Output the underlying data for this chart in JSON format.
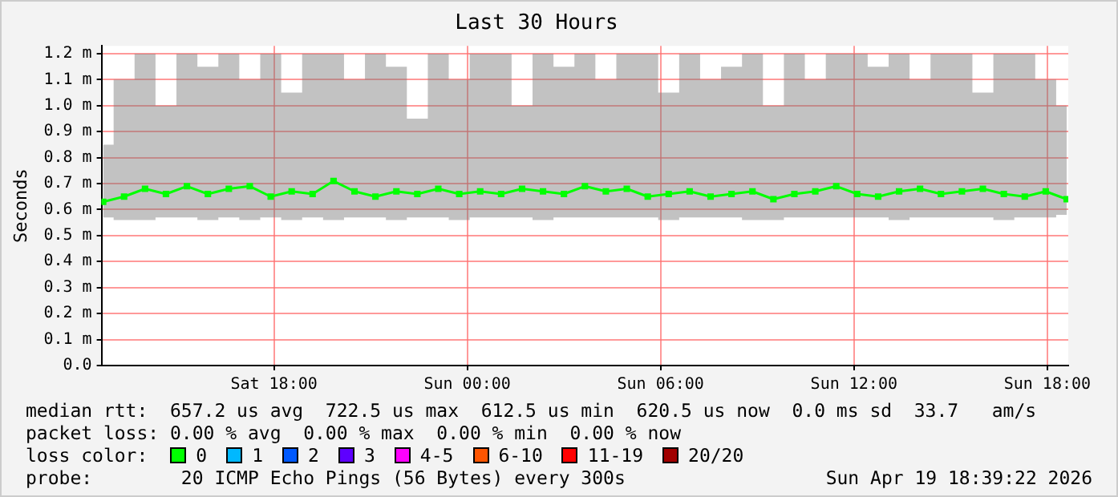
{
  "chart_data": {
    "type": "line",
    "title": "Last 30 Hours",
    "ylabel": "Seconds",
    "legend_title": "loss color:",
    "legend": "bottom",
    "grid": true,
    "marker": "square",
    "line_style": "solid",
    "x": [
      "2026-04-18T12:42",
      "2026-04-18T13:21",
      "2026-04-18T14:00",
      "2026-04-18T14:39",
      "2026-04-18T15:18",
      "2026-04-18T15:57",
      "2026-04-18T16:36",
      "2026-04-18T17:15",
      "2026-04-18T17:54",
      "2026-04-18T18:33",
      "2026-04-18T19:12",
      "2026-04-18T19:51",
      "2026-04-18T20:30",
      "2026-04-18T21:09",
      "2026-04-18T21:48",
      "2026-04-18T22:27",
      "2026-04-18T23:06",
      "2026-04-18T23:45",
      "2026-04-19T00:24",
      "2026-04-19T01:03",
      "2026-04-19T01:42",
      "2026-04-19T02:21",
      "2026-04-19T03:00",
      "2026-04-19T03:39",
      "2026-04-19T04:18",
      "2026-04-19T04:57",
      "2026-04-19T05:36",
      "2026-04-19T06:15",
      "2026-04-19T06:54",
      "2026-04-19T07:33",
      "2026-04-19T08:12",
      "2026-04-19T08:51",
      "2026-04-19T09:30",
      "2026-04-19T10:09",
      "2026-04-19T10:48",
      "2026-04-19T11:27",
      "2026-04-19T12:06",
      "2026-04-19T12:45",
      "2026-04-19T13:24",
      "2026-04-19T14:03",
      "2026-04-19T14:42",
      "2026-04-19T15:21",
      "2026-04-19T16:00",
      "2026-04-19T16:39",
      "2026-04-19T17:18",
      "2026-04-19T17:57",
      "2026-04-19T18:36"
    ],
    "xlim": [
      "2026-04-18T12:39",
      "2026-04-19T18:39"
    ],
    "xticks": [
      {
        "value": "2026-04-18T18:00",
        "label": "Sat 18:00"
      },
      {
        "value": "2026-04-19T00:00",
        "label": "Sun 00:00"
      },
      {
        "value": "2026-04-19T06:00",
        "label": "Sun 06:00"
      },
      {
        "value": "2026-04-19T12:00",
        "label": "Sun 12:00"
      },
      {
        "value": "2026-04-19T18:00",
        "label": "Sun 18:00"
      }
    ],
    "ylim": [
      0,
      1.23
    ],
    "yticks": [
      {
        "value": 0,
        "label": "0.0"
      },
      {
        "value": 0.1,
        "label": "0.1 m"
      },
      {
        "value": 0.2,
        "label": "0.2 m"
      },
      {
        "value": 0.3,
        "label": "0.3 m"
      },
      {
        "value": 0.4,
        "label": "0.4 m"
      },
      {
        "value": 0.5,
        "label": "0.5 m"
      },
      {
        "value": 0.6,
        "label": "0.6 m"
      },
      {
        "value": 0.7,
        "label": "0.7 m"
      },
      {
        "value": 0.8,
        "label": "0.8 m"
      },
      {
        "value": 0.9,
        "label": "0.9 m"
      },
      {
        "value": 1.0,
        "label": "1.0 m"
      },
      {
        "value": 1.1,
        "label": "1.1 m"
      },
      {
        "value": 1.2,
        "label": "1.2 m"
      }
    ],
    "series": [
      {
        "name": "0",
        "color": "#00ff00",
        "values": [
          0.63,
          0.65,
          0.68,
          0.66,
          0.69,
          0.66,
          0.68,
          0.69,
          0.65,
          0.67,
          0.66,
          0.71,
          0.67,
          0.65,
          0.67,
          0.66,
          0.68,
          0.66,
          0.67,
          0.66,
          0.68,
          0.67,
          0.66,
          0.69,
          0.67,
          0.68,
          0.65,
          0.66,
          0.67,
          0.65,
          0.66,
          0.67,
          0.64,
          0.66,
          0.67,
          0.69,
          0.66,
          0.65,
          0.67,
          0.68,
          0.66,
          0.67,
          0.68,
          0.66,
          0.65,
          0.67,
          0.64
        ],
        "lower": [
          0.57,
          0.56,
          0.56,
          0.57,
          0.57,
          0.56,
          0.57,
          0.56,
          0.57,
          0.56,
          0.57,
          0.56,
          0.57,
          0.57,
          0.56,
          0.57,
          0.57,
          0.56,
          0.57,
          0.57,
          0.57,
          0.56,
          0.57,
          0.57,
          0.57,
          0.57,
          0.57,
          0.56,
          0.57,
          0.57,
          0.57,
          0.56,
          0.56,
          0.57,
          0.57,
          0.57,
          0.57,
          0.57,
          0.56,
          0.57,
          0.57,
          0.57,
          0.57,
          0.56,
          0.57,
          0.57,
          0.58
        ],
        "upper": [
          0.85,
          1.1,
          1.2,
          1.0,
          1.2,
          1.15,
          1.2,
          1.1,
          1.2,
          1.05,
          1.2,
          1.2,
          1.1,
          1.2,
          1.15,
          0.95,
          1.2,
          1.1,
          1.2,
          1.2,
          1.0,
          1.2,
          1.15,
          1.2,
          1.1,
          1.2,
          1.2,
          1.05,
          1.2,
          1.1,
          1.15,
          1.2,
          1.0,
          1.2,
          1.1,
          1.2,
          1.2,
          1.15,
          1.2,
          1.1,
          1.2,
          1.2,
          1.05,
          1.2,
          1.2,
          1.1,
          1.0
        ]
      },
      {
        "name": "1",
        "color": "#00b8ff",
        "values": [
          null,
          null,
          null,
          null,
          null,
          null,
          null,
          null,
          null,
          null,
          null,
          null,
          null,
          null,
          null,
          null,
          null,
          null,
          null,
          null,
          null,
          null,
          null,
          null,
          null,
          null,
          null,
          null,
          null,
          null,
          null,
          null,
          null,
          null,
          null,
          null,
          null,
          null,
          null,
          null,
          null,
          null,
          null,
          null,
          null,
          null,
          null
        ]
      },
      {
        "name": "2",
        "color": "#0059ff",
        "values": [
          null,
          null,
          null,
          null,
          null,
          null,
          null,
          null,
          null,
          null,
          null,
          null,
          null,
          null,
          null,
          null,
          null,
          null,
          null,
          null,
          null,
          null,
          null,
          null,
          null,
          null,
          null,
          null,
          null,
          null,
          null,
          null,
          null,
          null,
          null,
          null,
          null,
          null,
          null,
          null,
          null,
          null,
          null,
          null,
          null,
          null,
          null
        ]
      },
      {
        "name": "3",
        "color": "#5e00ff",
        "values": [
          null,
          null,
          null,
          null,
          null,
          null,
          null,
          null,
          null,
          null,
          null,
          null,
          null,
          null,
          null,
          null,
          null,
          null,
          null,
          null,
          null,
          null,
          null,
          null,
          null,
          null,
          null,
          null,
          null,
          null,
          null,
          null,
          null,
          null,
          null,
          null,
          null,
          null,
          null,
          null,
          null,
          null,
          null,
          null,
          null,
          null,
          null
        ]
      },
      {
        "name": "4-5",
        "color": "#ff00ff",
        "values": [
          null,
          null,
          null,
          null,
          null,
          null,
          null,
          null,
          null,
          null,
          null,
          null,
          null,
          null,
          null,
          null,
          null,
          null,
          null,
          null,
          null,
          null,
          null,
          null,
          null,
          null,
          null,
          null,
          null,
          null,
          null,
          null,
          null,
          null,
          null,
          null,
          null,
          null,
          null,
          null,
          null,
          null,
          null,
          null,
          null,
          null,
          null
        ]
      },
      {
        "name": "6-10",
        "color": "#ff5500",
        "values": [
          null,
          null,
          null,
          null,
          null,
          null,
          null,
          null,
          null,
          null,
          null,
          null,
          null,
          null,
          null,
          null,
          null,
          null,
          null,
          null,
          null,
          null,
          null,
          null,
          null,
          null,
          null,
          null,
          null,
          null,
          null,
          null,
          null,
          null,
          null,
          null,
          null,
          null,
          null,
          null,
          null,
          null,
          null,
          null,
          null,
          null,
          null
        ]
      },
      {
        "name": "11-19",
        "color": "#ff0000",
        "values": [
          null,
          null,
          null,
          null,
          null,
          null,
          null,
          null,
          null,
          null,
          null,
          null,
          null,
          null,
          null,
          null,
          null,
          null,
          null,
          null,
          null,
          null,
          null,
          null,
          null,
          null,
          null,
          null,
          null,
          null,
          null,
          null,
          null,
          null,
          null,
          null,
          null,
          null,
          null,
          null,
          null,
          null,
          null,
          null,
          null,
          null,
          null
        ]
      },
      {
        "name": "20/20",
        "color": "#a10000",
        "values": [
          null,
          null,
          null,
          null,
          null,
          null,
          null,
          null,
          null,
          null,
          null,
          null,
          null,
          null,
          null,
          null,
          null,
          null,
          null,
          null,
          null,
          null,
          null,
          null,
          null,
          null,
          null,
          null,
          null,
          null,
          null,
          null,
          null,
          null,
          null,
          null,
          null,
          null,
          null,
          null,
          null,
          null,
          null,
          null,
          null,
          null,
          null
        ]
      }
    ],
    "annotations": [
      "median rtt:  657.2 us avg  722.5 us max  612.5 us min  620.5 us now  0.0 ms sd  33.7   am/s",
      "packet loss: 0.00 % avg  0.00 % max  0.00 % min  0.00 % now",
      "probe:        20 ICMP Echo Pings (56 Bytes) every 300s",
      "Sun Apr 19 18:39:22 2026"
    ]
  }
}
